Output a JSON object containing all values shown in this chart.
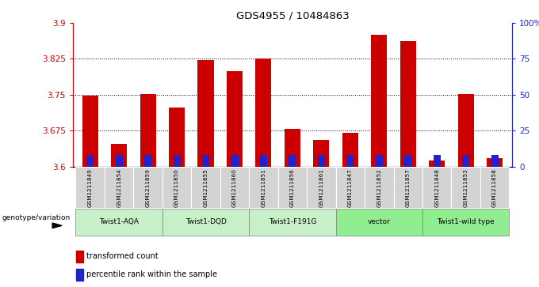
{
  "title": "GDS4955 / 10484863",
  "samples": [
    "GSM1211849",
    "GSM1211854",
    "GSM1211859",
    "GSM1211850",
    "GSM1211855",
    "GSM1211860",
    "GSM1211851",
    "GSM1211856",
    "GSM1211861",
    "GSM1211847",
    "GSM1211852",
    "GSM1211857",
    "GSM1211848",
    "GSM1211853",
    "GSM1211858"
  ],
  "red_values": [
    3.748,
    3.647,
    3.752,
    3.723,
    3.823,
    3.8,
    3.826,
    3.678,
    3.655,
    3.67,
    3.875,
    3.862,
    3.613,
    3.752,
    3.618
  ],
  "blue_percentiles": [
    8,
    8,
    8,
    8,
    8,
    8,
    8,
    8,
    8,
    8,
    8,
    8,
    8,
    8,
    8
  ],
  "ymin": 3.6,
  "ymax": 3.9,
  "yticks": [
    3.6,
    3.675,
    3.75,
    3.825,
    3.9
  ],
  "right_yticks": [
    0,
    25,
    50,
    75,
    100
  ],
  "right_yticklabels": [
    "0",
    "25",
    "50",
    "75",
    "100%"
  ],
  "groups": [
    {
      "label": "Twist1-AQA",
      "start": 0,
      "end": 3,
      "color": "#c8f0c8"
    },
    {
      "label": "Twist1-DQD",
      "start": 3,
      "end": 6,
      "color": "#c8f0c8"
    },
    {
      "label": "Twist1-F191G",
      "start": 6,
      "end": 9,
      "color": "#c8f0c8"
    },
    {
      "label": "vector",
      "start": 9,
      "end": 12,
      "color": "#90ee90"
    },
    {
      "label": "Twist1-wild type",
      "start": 12,
      "end": 15,
      "color": "#90ee90"
    }
  ],
  "bar_width": 0.55,
  "blue_bar_width": 0.25,
  "bar_color_red": "#cc0000",
  "bar_color_blue": "#2222cc",
  "axis_color_left": "#cc0000",
  "axis_color_right": "#2222cc",
  "legend_label_red": "transformed count",
  "legend_label_blue": "percentile rank within the sample",
  "genotype_label": "genotype/variation",
  "cell_color": "#d3d3d3",
  "group_color_light": "#c8f0c8",
  "group_color_dark": "#90ee90"
}
